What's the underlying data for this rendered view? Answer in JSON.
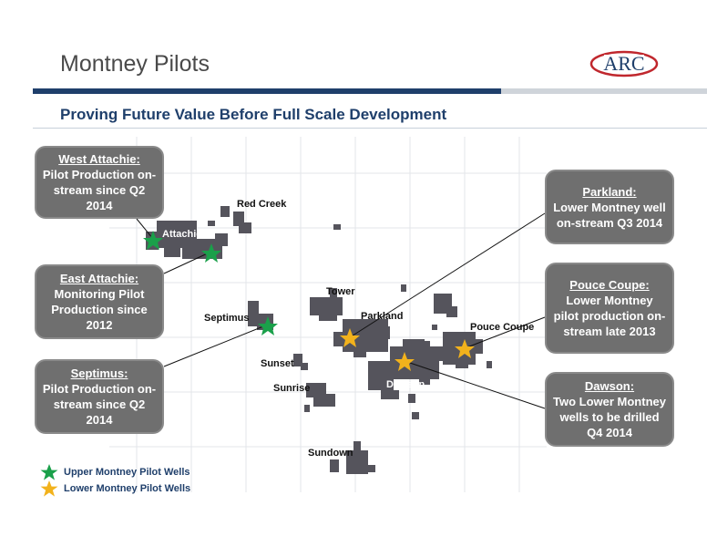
{
  "header": {
    "title": "Montney Pilots",
    "logo_text": "ARC",
    "subtitle": "Proving Future Value Before Full Scale Development"
  },
  "colors": {
    "navy": "#1f3f6b",
    "callout_bg": "#6f6f6f",
    "land": "#55545c",
    "upper_star": "#1aa04a",
    "lower_star": "#f2b21c",
    "logo_red": "#c0272d"
  },
  "callouts": {
    "west_attachie": {
      "heading": "West Attachie:",
      "body": "Pilot Production on-stream since Q2 2014"
    },
    "east_attachie": {
      "heading": "East Attachie:",
      "body": "Monitoring Pilot Production since 2012"
    },
    "septimus": {
      "heading": "Septimus:",
      "body": "Pilot Production on-stream since Q2 2014"
    },
    "parkland": {
      "heading": "Parkland:",
      "body": "Lower Montney well on-stream Q3 2014"
    },
    "pouce_coupe": {
      "heading": "Pouce Coupe:",
      "body": "Lower Montney pilot production on-stream late 2013"
    },
    "dawson": {
      "heading": "Dawson:",
      "body": "Two Lower Montney wells to be drilled Q4 2014"
    }
  },
  "map_labels": {
    "red_creek": "Red Creek",
    "attachie": "Attachie",
    "tower": "Tower",
    "septimus": "Septimus",
    "parkland": "Parkland",
    "pouce_coupe": "Pouce Coupe",
    "sunset": "Sunset",
    "sunrise": "Sunrise",
    "dawson": "Dawson",
    "sundown": "Sundown"
  },
  "legend": {
    "upper": {
      "label": "Upper Montney Pilot Wells",
      "icon": "green-star-icon"
    },
    "lower": {
      "label": "Lower Montney Pilot Wells",
      "icon": "gold-star-icon"
    }
  }
}
